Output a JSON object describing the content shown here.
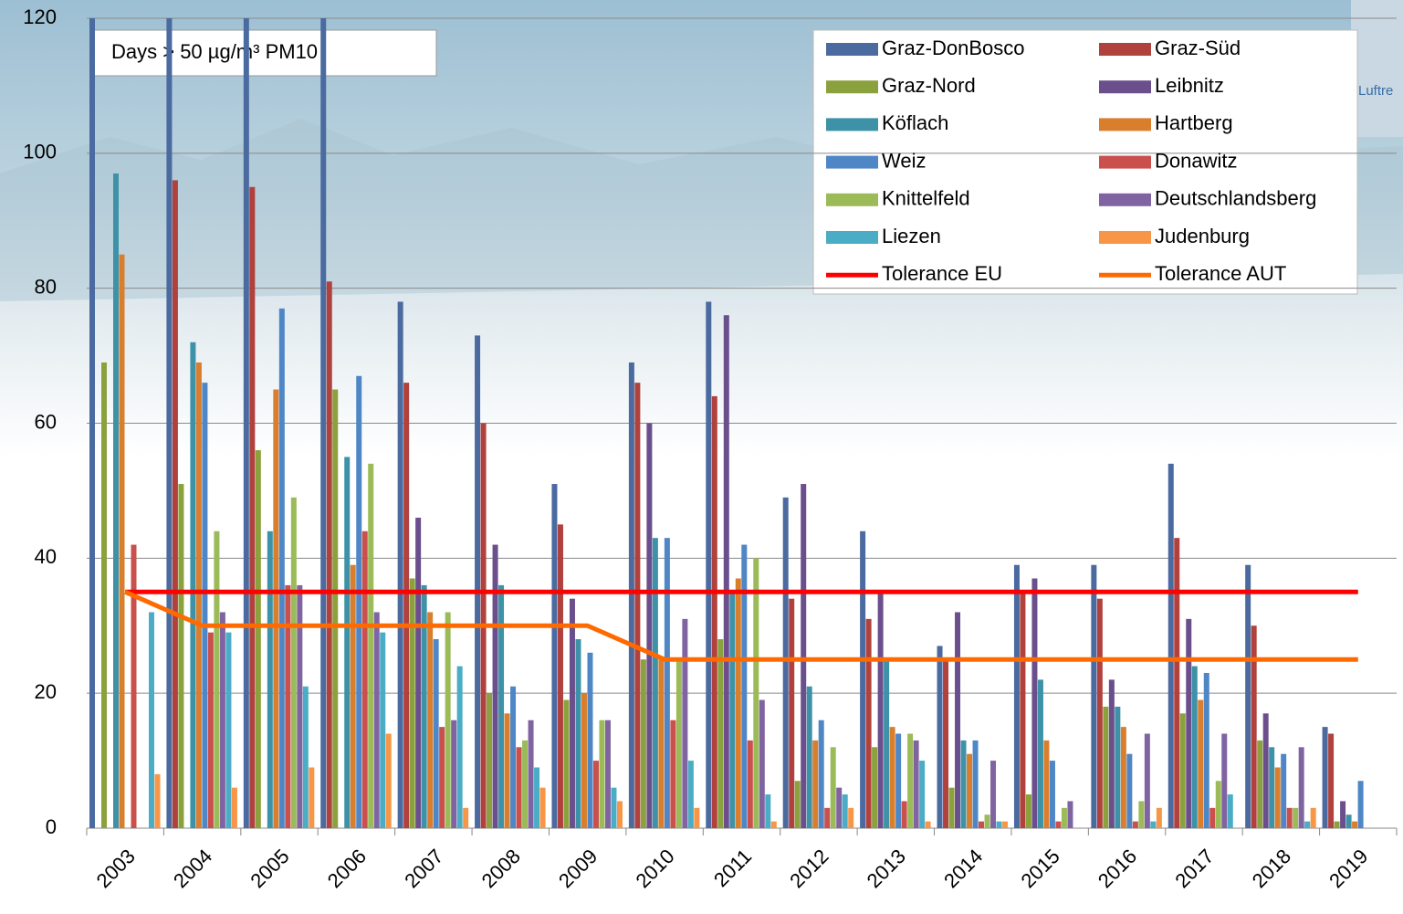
{
  "chart_data": {
    "type": "bar",
    "title": "Days > 50 µg/m³ PM10",
    "background_text": "Luftre",
    "categories": [
      "2003",
      "2004",
      "2005",
      "2006",
      "2007",
      "2008",
      "2009",
      "2010",
      "2011",
      "2012",
      "2013",
      "2014",
      "2015",
      "2016",
      "2017",
      "2018",
      "2019"
    ],
    "ylim": [
      0,
      120
    ],
    "yticks": [
      0,
      20,
      40,
      60,
      80,
      100,
      120
    ],
    "grid": true,
    "legend": "top-right",
    "series": [
      {
        "name": "Graz-DonBosco",
        "color": "#4a6aa0",
        "values": [
          125,
          125,
          125,
          125,
          78,
          73,
          51,
          69,
          78,
          49,
          44,
          27,
          39,
          39,
          54,
          39,
          15
        ]
      },
      {
        "name": "Graz-Süd",
        "color": "#b0413d",
        "values": [
          null,
          96,
          95,
          81,
          66,
          60,
          45,
          66,
          64,
          34,
          31,
          25,
          35,
          34,
          43,
          30,
          14
        ]
      },
      {
        "name": "Graz-Nord",
        "color": "#8aa13d",
        "values": [
          69,
          51,
          56,
          65,
          37,
          20,
          19,
          25,
          28,
          7,
          12,
          6,
          5,
          18,
          17,
          13,
          1
        ]
      },
      {
        "name": "Leibnitz",
        "color": "#6b4f8c",
        "values": [
          null,
          null,
          null,
          null,
          46,
          42,
          34,
          60,
          76,
          51,
          35,
          32,
          37,
          22,
          31,
          17,
          4
        ]
      },
      {
        "name": "Köflach",
        "color": "#3d92a8",
        "values": [
          97,
          72,
          44,
          55,
          36,
          36,
          28,
          43,
          35,
          21,
          25,
          13,
          22,
          18,
          24,
          12,
          2
        ]
      },
      {
        "name": "Hartberg",
        "color": "#d97e2d",
        "values": [
          85,
          69,
          65,
          39,
          32,
          17,
          20,
          25,
          37,
          13,
          15,
          11,
          13,
          15,
          19,
          9,
          1
        ]
      },
      {
        "name": "Weiz",
        "color": "#4f86c6",
        "values": [
          null,
          66,
          77,
          67,
          28,
          21,
          26,
          43,
          42,
          16,
          14,
          13,
          10,
          11,
          23,
          11,
          7
        ]
      },
      {
        "name": "Donawitz",
        "color": "#c9504c",
        "values": [
          42,
          29,
          36,
          44,
          15,
          12,
          10,
          16,
          13,
          3,
          4,
          1,
          1,
          1,
          3,
          3,
          null
        ]
      },
      {
        "name": "Knittelfeld",
        "color": "#9bbb59",
        "values": [
          null,
          44,
          49,
          54,
          32,
          13,
          16,
          25,
          40,
          12,
          14,
          2,
          3,
          4,
          7,
          3,
          null
        ]
      },
      {
        "name": "Deutschlandsberg",
        "color": "#8064a2",
        "values": [
          null,
          32,
          36,
          32,
          16,
          16,
          16,
          31,
          19,
          6,
          13,
          10,
          4,
          14,
          14,
          12,
          null
        ]
      },
      {
        "name": "Liezen",
        "color": "#4bacc6",
        "values": [
          32,
          29,
          21,
          29,
          24,
          9,
          6,
          10,
          5,
          5,
          10,
          1,
          null,
          1,
          5,
          1,
          null
        ]
      },
      {
        "name": "Judenburg",
        "color": "#f79646",
        "values": [
          8,
          6,
          9,
          14,
          3,
          6,
          4,
          3,
          1,
          3,
          1,
          1,
          null,
          3,
          null,
          3,
          null
        ]
      }
    ],
    "lines": [
      {
        "name": "Tolerance EU",
        "color": "#ff0000",
        "values": [
          35,
          35,
          35,
          35,
          35,
          35,
          35,
          35,
          35,
          35,
          35,
          35,
          35,
          35,
          35,
          35,
          35
        ]
      },
      {
        "name": "Tolerance AUT",
        "color": "#ff6a00",
        "values": [
          35,
          30,
          30,
          30,
          30,
          30,
          30,
          25,
          25,
          25,
          25,
          25,
          25,
          25,
          25,
          25,
          25
        ]
      }
    ]
  }
}
